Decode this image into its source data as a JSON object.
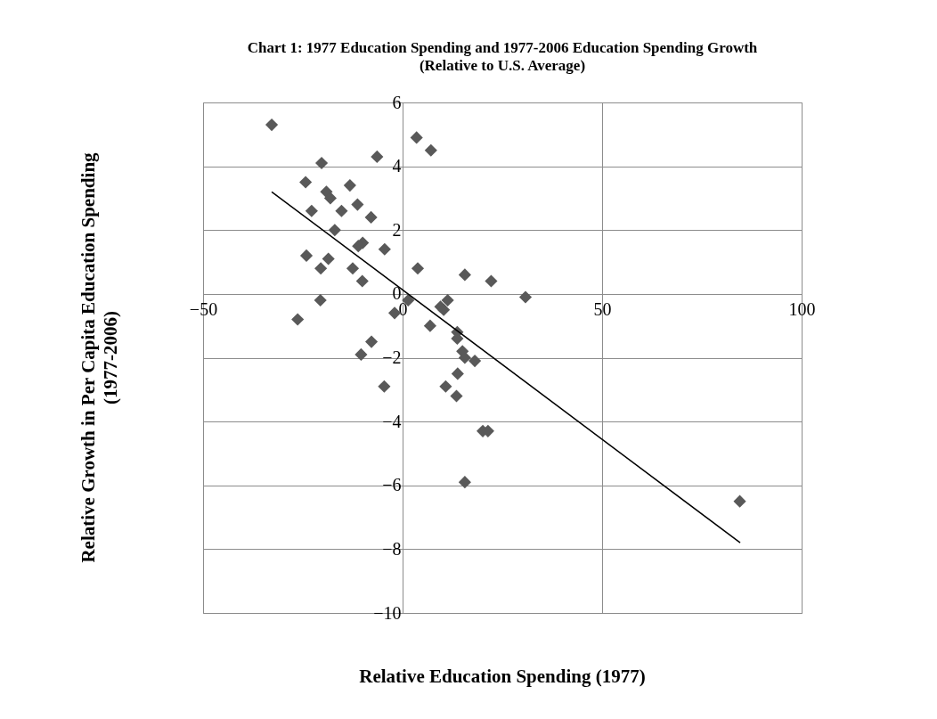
{
  "chart_data": {
    "type": "scatter",
    "title": "Chart 1:  1977 Education Spending and 1977-2006  Education Spending Growth",
    "subtitle": "(Relative to U.S. Average)",
    "xlabel": "Relative Education Spending (1977)",
    "ylabel": "Relative Growth in Per Capita Education Spending\n(1977-2006)",
    "xlim": [
      -50,
      100
    ],
    "xticks": [
      -50,
      0,
      50,
      100
    ],
    "ylim": [
      -10,
      6
    ],
    "yticks": [
      -10,
      -8,
      -6,
      -4,
      -2,
      0,
      2,
      4,
      6
    ],
    "grid": true,
    "series": [
      {
        "color": "#595959",
        "marker": "diamond",
        "x": [
          -32.8,
          3.5,
          7.1,
          -6.4,
          -20.3,
          -24.3,
          -13.2,
          -19.1,
          -18.1,
          -11.3,
          -22.8,
          -15.3,
          -7.9,
          -17.0,
          -10.0,
          -11.1,
          -4.5,
          -24.1,
          -18.6,
          -20.5,
          -12.5,
          -10.1,
          3.8,
          15.6,
          22.2,
          30.8,
          -20.6,
          -26.3,
          -2.0,
          1.4,
          11.3,
          9.5,
          10.3,
          6.9,
          13.7,
          13.7,
          15.0,
          15.6,
          18.1,
          -7.8,
          -10.4,
          13.8,
          10.8,
          -4.6,
          13.5,
          20.1,
          21.4,
          15.6,
          84.5
        ],
        "values": [
          5.3,
          4.9,
          4.5,
          4.3,
          4.1,
          3.5,
          3.4,
          3.2,
          3.0,
          2.8,
          2.6,
          2.6,
          2.4,
          2.0,
          1.6,
          1.5,
          1.4,
          1.2,
          1.1,
          0.8,
          0.8,
          0.4,
          0.8,
          0.6,
          0.4,
          -0.1,
          -0.2,
          -0.8,
          -0.6,
          -0.2,
          -0.2,
          -0.4,
          -0.5,
          -1.0,
          -1.2,
          -1.4,
          -1.8,
          -2.0,
          -2.1,
          -1.5,
          -1.9,
          -2.5,
          -2.9,
          -2.9,
          -3.2,
          -4.3,
          -4.3,
          -5.9,
          -6.5
        ]
      },
      {
        "type": "line",
        "color": "#000000",
        "x": [
          -32.8,
          84.6
        ],
        "values": [
          3.2,
          -7.8
        ]
      }
    ]
  }
}
